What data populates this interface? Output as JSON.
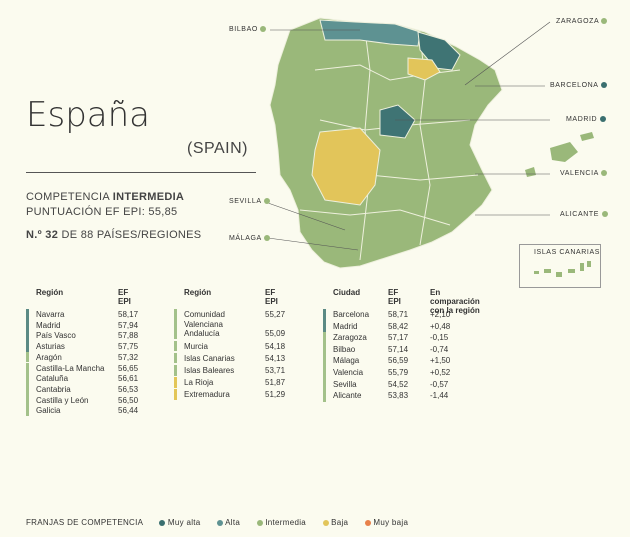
{
  "title": "España",
  "subtitle": "(SPAIN)",
  "competence_prefix": "COMPETENCIA ",
  "competence_level": "INTERMEDIA",
  "score_line": "PUNTUACIÓN EF EPI: 55,85",
  "rank_prefix": "N.º 32",
  "rank_suffix": " DE 88 PAÍSES/REGIONES",
  "colors": {
    "muy_alta": "#3a6f6f",
    "alta": "#5e9292",
    "intermedia": "#9ab87a",
    "baja": "#e2c55a",
    "muy_baja": "#e8814a",
    "bar_alta": "#5b8a84",
    "bar_intermedia": "#a3c18a",
    "bar_baja": "#e3c657"
  },
  "map_labels": {
    "bilbao": "BILBAO",
    "zaragoza": "ZARAGOZA",
    "barcelona": "BARCELONA",
    "madrid": "MADRID",
    "valencia": "VALENCIA",
    "alicante": "ALICANTE",
    "sevilla": "SEVILLA",
    "malaga": "MÁLAGA",
    "canarias": "ISLAS CANARIAS"
  },
  "table1": {
    "h_region": "Región",
    "h_epi": "EF EPI",
    "rows": [
      {
        "name": "Navarra",
        "value": "58,17",
        "band": "alta"
      },
      {
        "name": "Madrid",
        "value": "57,94",
        "band": "alta"
      },
      {
        "name": "País Vasco",
        "value": "57,88",
        "band": "alta"
      },
      {
        "name": "Asturias",
        "value": "57,75",
        "band": "alta"
      },
      {
        "name": "Aragón",
        "value": "57,32",
        "band": "intermedia"
      },
      {
        "name": "Castilla-La Mancha",
        "value": "56,65",
        "band": "intermedia"
      },
      {
        "name": "Cataluña",
        "value": "56,61",
        "band": "intermedia"
      },
      {
        "name": "Cantabria",
        "value": "56,53",
        "band": "intermedia"
      },
      {
        "name": "Castilla y León",
        "value": "56,50",
        "band": "intermedia"
      },
      {
        "name": "Galicia",
        "value": "56,44",
        "band": "intermedia"
      }
    ]
  },
  "table2": {
    "h_region": "Región",
    "h_epi": "EF EPI",
    "rows": [
      {
        "name": "Comunidad",
        "name2": "Valenciana",
        "value": "55,27",
        "band": "intermedia"
      },
      {
        "name": "Andalucía",
        "value": "55,09",
        "band": "intermedia"
      },
      {
        "name": "Murcia",
        "value": "54,18",
        "band": "intermedia"
      },
      {
        "name": "Islas Canarias",
        "value": "54,13",
        "band": "intermedia"
      },
      {
        "name": "Islas Baleares",
        "value": "53,71",
        "band": "intermedia"
      },
      {
        "name": "La Rioja",
        "value": "51,87",
        "band": "baja"
      },
      {
        "name": "Extremadura",
        "value": "51,29",
        "band": "baja"
      }
    ]
  },
  "table3": {
    "h_city": "Ciudad",
    "h_epi": "EF EPI",
    "h_cmp": "En comparación con la región",
    "rows": [
      {
        "name": "Barcelona",
        "value": "58,71",
        "cmp": "+2,10",
        "band": "alta"
      },
      {
        "name": "Madrid",
        "value": "58,42",
        "cmp": "+0,48",
        "band": "alta"
      },
      {
        "name": "Zaragoza",
        "value": "57,17",
        "cmp": "-0,15",
        "band": "intermedia"
      },
      {
        "name": "Bilbao",
        "value": "57,14",
        "cmp": "-0,74",
        "band": "intermedia"
      },
      {
        "name": "Málaga",
        "value": "56,59",
        "cmp": "+1,50",
        "band": "intermedia"
      },
      {
        "name": "Valencia",
        "value": "55,79",
        "cmp": "+0,52",
        "band": "intermedia"
      },
      {
        "name": "Sevilla",
        "value": "54,52",
        "cmp": "-0,57",
        "band": "intermedia"
      },
      {
        "name": "Alicante",
        "value": "53,83",
        "cmp": "-1,44",
        "band": "intermedia"
      }
    ]
  },
  "legend": {
    "title": "FRANJAS DE COMPETENCIA",
    "muy_alta": "Muy alta",
    "alta": "Alta",
    "intermedia": "Intermedia",
    "baja": "Baja",
    "muy_baja": "Muy baja"
  }
}
